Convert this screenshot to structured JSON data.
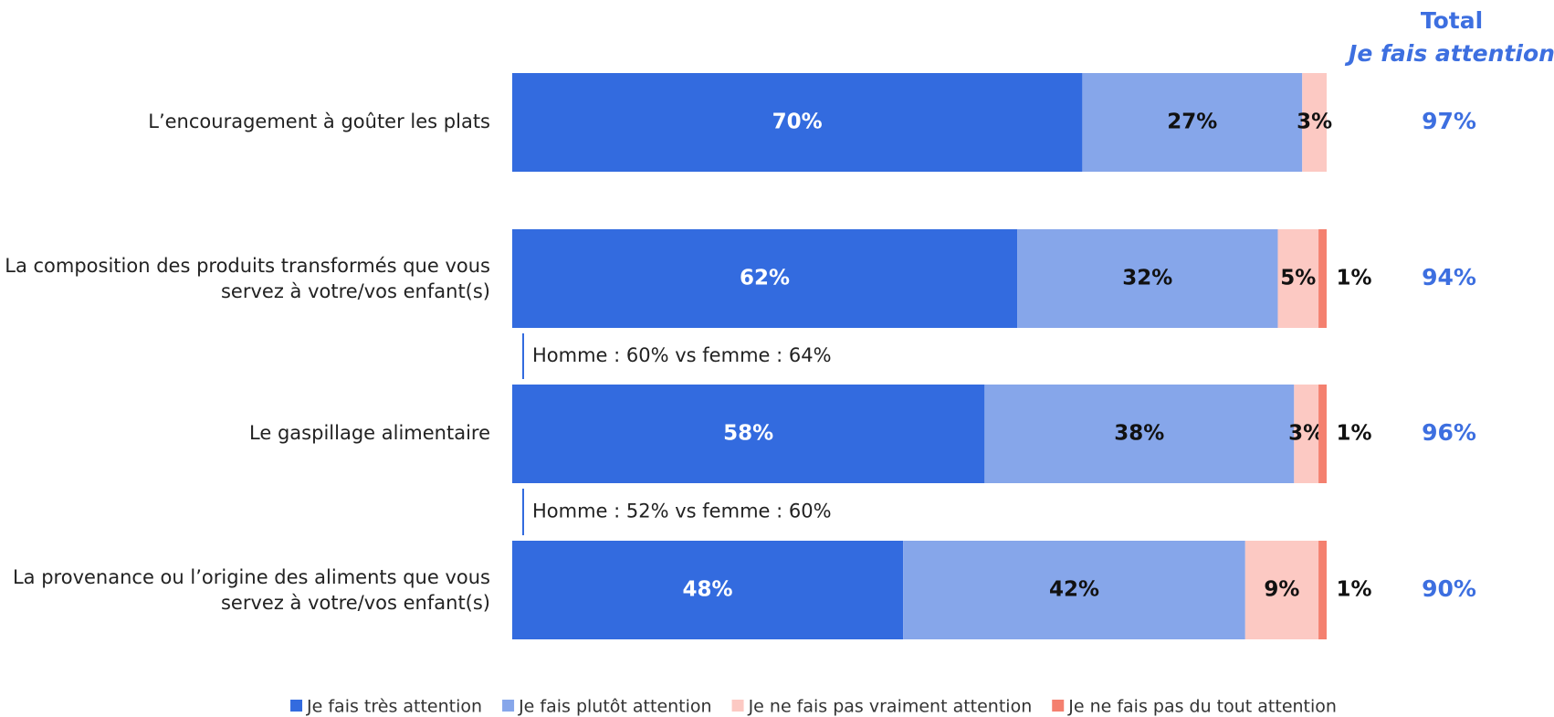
{
  "chart_data": {
    "type": "stacked-bar-horizontal",
    "categories": [
      "L’encouragement à goûter les plats",
      "La composition des produits transformés que vous servez à votre/vos enfant(s)",
      "Le gaspillage alimentaire",
      "La provenance ou l’origine des aliments que vous servez à votre/vos enfant(s)"
    ],
    "series": [
      {
        "name": "Je fais très attention",
        "color": "#336bdf",
        "values": [
          70,
          62,
          58,
          48
        ],
        "value_labels": [
          "70%",
          "62%",
          "58%",
          "48%"
        ]
      },
      {
        "name": "Je fais plutôt attention",
        "color": "#86a6ea",
        "values": [
          27,
          32,
          38,
          42
        ],
        "value_labels": [
          "27%",
          "32%",
          "38%",
          "42%"
        ]
      },
      {
        "name": "Je ne fais pas vraiment attention",
        "color": "#fcc9c3",
        "values": [
          3,
          5,
          3,
          9
        ],
        "value_labels": [
          "3%",
          "5%",
          "3%",
          "9%"
        ]
      },
      {
        "name": "Je ne fais pas du tout attention",
        "color": "#f4806f",
        "values": [
          null,
          1,
          1,
          1
        ],
        "value_labels": [
          null,
          "1%",
          "1%",
          "1%"
        ]
      }
    ],
    "xlim": [
      0,
      100
    ],
    "totals": {
      "title": "Total",
      "subtitle": "Je fais attention",
      "color": "#3d6fe0",
      "values": [
        97,
        94,
        96,
        90
      ],
      "value_labels": [
        "97%",
        "94%",
        "96%",
        "90%"
      ]
    },
    "annotations": [
      {
        "category": 1,
        "text": "Homme : 60% vs femme : 64%"
      },
      {
        "category": 2,
        "text": "Homme : 52% vs femme : 60%"
      }
    ],
    "legend": "bottom"
  }
}
